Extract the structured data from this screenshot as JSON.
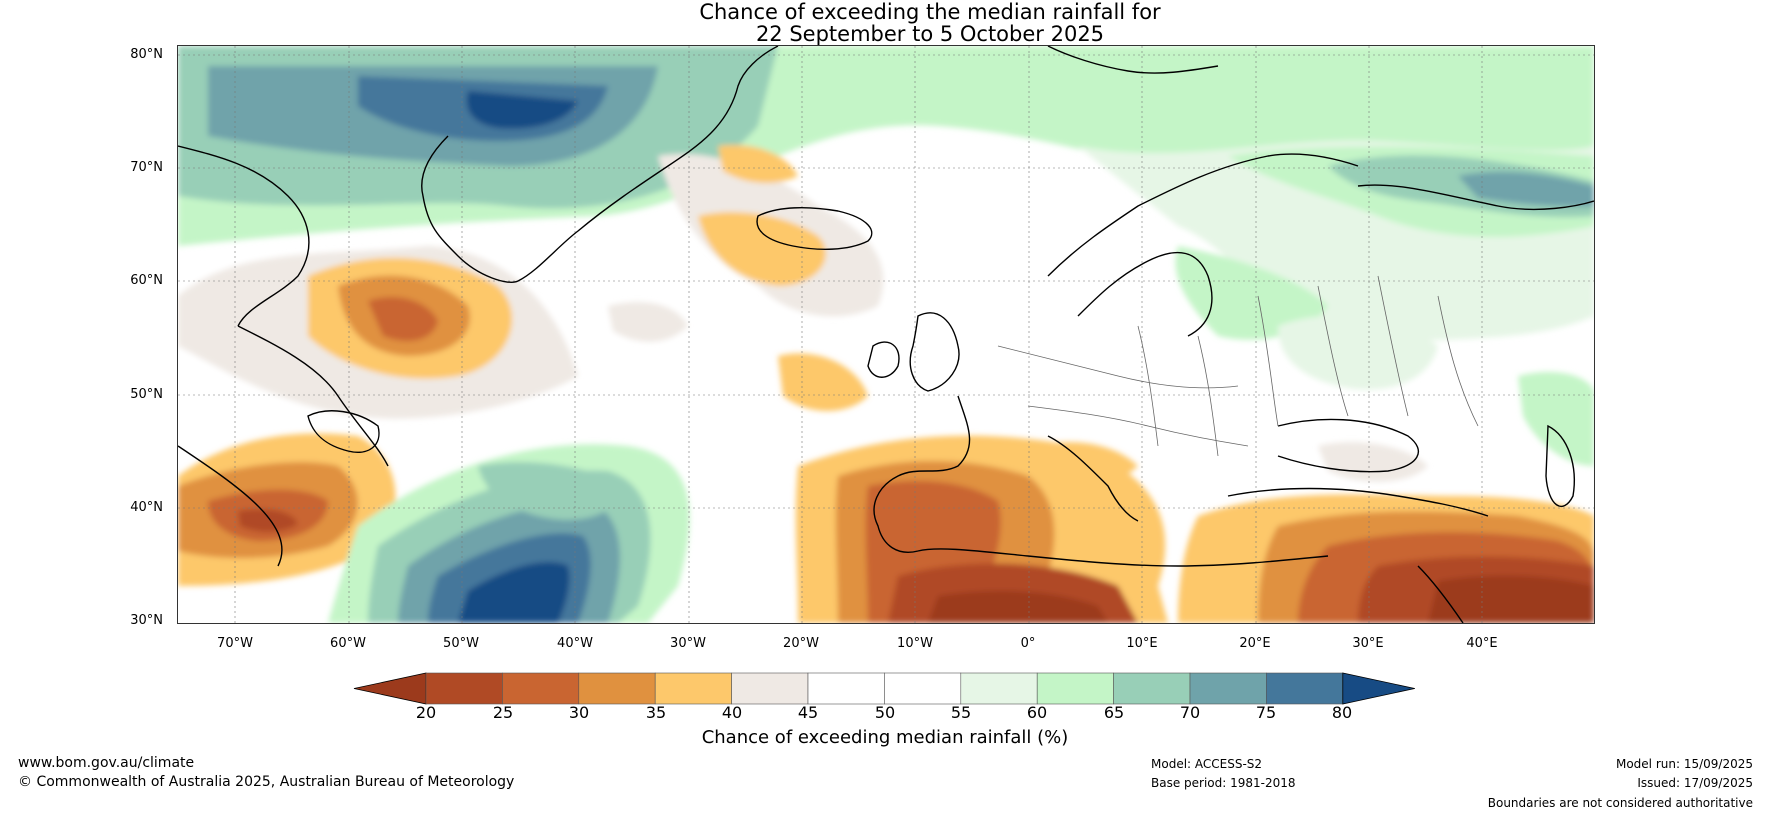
{
  "title": {
    "line1": "Chance of exceeding the median rainfall for",
    "line2": "22 September to 5 October 2025"
  },
  "map": {
    "lat_labels": [
      "80°N",
      "70°N",
      "60°N",
      "50°N",
      "40°N",
      "30°N"
    ],
    "lon_labels": [
      "70°W",
      "60°W",
      "50°W",
      "40°W",
      "30°W",
      "20°W",
      "10°W",
      "0°",
      "10°E",
      "20°E",
      "30°E",
      "40°E"
    ]
  },
  "colorbar": {
    "ticks": [
      "20",
      "25",
      "30",
      "35",
      "40",
      "45",
      "50",
      "55",
      "60",
      "65",
      "70",
      "75",
      "80"
    ],
    "colors": [
      "#9c3a1c",
      "#b04a25",
      "#c96531",
      "#e0913f",
      "#fdc86b",
      "#efe9e4",
      "#ffffff",
      "#ffffff",
      "#e6f6e6",
      "#c4f5c7",
      "#98cfb7",
      "#6fa3aa",
      "#44779b",
      "#174b84"
    ],
    "label": "Chance of exceeding median rainfall (%)"
  },
  "footer": {
    "website": "www.bom.gov.au/climate",
    "copyright": "© Commonwealth of Australia 2025, Australian Bureau of Meteorology",
    "model": "Model: ACCESS-S2",
    "base_period": "Base period: 1981-2018",
    "model_run": "Model run: 15/09/2025",
    "issued": "Issued: 17/09/2025",
    "disclaimer": "Boundaries are not considered authoritative"
  }
}
